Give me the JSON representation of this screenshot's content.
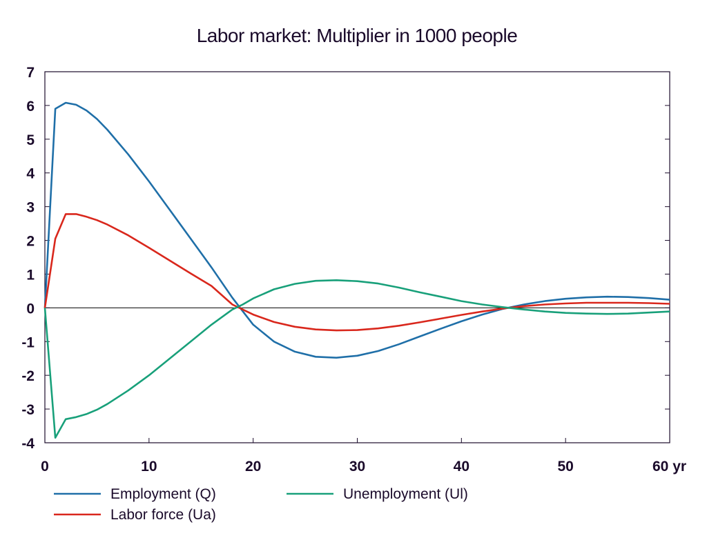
{
  "chart_data": {
    "type": "line",
    "title": "Labor market: Multiplier in 1000 people",
    "xlabel": "",
    "ylabel": "",
    "x_unit_label": "yr",
    "xlim": [
      0,
      60
    ],
    "ylim": [
      -4,
      7
    ],
    "x_ticks": [
      0,
      10,
      20,
      30,
      40,
      50,
      60
    ],
    "x_tick_labels": [
      "0",
      "10",
      "20",
      "30",
      "40",
      "50",
      "60 yr"
    ],
    "y_ticks": [
      -4,
      -3,
      -2,
      -1,
      0,
      1,
      2,
      3,
      4,
      5,
      6,
      7
    ],
    "y_tick_labels": [
      "-4",
      "-3",
      "-2",
      "-1",
      "0",
      "1",
      "2",
      "3",
      "4",
      "5",
      "6",
      "7"
    ],
    "grid": false,
    "zero_line": true,
    "legend_position": "bottom",
    "series": [
      {
        "name": "Employment (Q)",
        "color": "#1f6fa8",
        "points": [
          [
            0,
            0
          ],
          [
            1,
            5.9
          ],
          [
            2,
            6.08
          ],
          [
            3,
            6.02
          ],
          [
            4,
            5.85
          ],
          [
            5,
            5.6
          ],
          [
            6,
            5.28
          ],
          [
            8,
            4.55
          ],
          [
            10,
            3.75
          ],
          [
            12,
            2.9
          ],
          [
            14,
            2.05
          ],
          [
            16,
            1.2
          ],
          [
            18,
            0.3
          ],
          [
            19,
            -0.1
          ],
          [
            20,
            -0.5
          ],
          [
            22,
            -1.0
          ],
          [
            24,
            -1.3
          ],
          [
            26,
            -1.45
          ],
          [
            28,
            -1.48
          ],
          [
            30,
            -1.42
          ],
          [
            32,
            -1.28
          ],
          [
            34,
            -1.08
          ],
          [
            36,
            -0.85
          ],
          [
            38,
            -0.62
          ],
          [
            40,
            -0.4
          ],
          [
            42,
            -0.2
          ],
          [
            44,
            -0.03
          ],
          [
            46,
            0.1
          ],
          [
            48,
            0.2
          ],
          [
            50,
            0.27
          ],
          [
            52,
            0.31
          ],
          [
            54,
            0.33
          ],
          [
            56,
            0.32
          ],
          [
            58,
            0.29
          ],
          [
            60,
            0.24
          ]
        ]
      },
      {
        "name": "Labor force (Ua)",
        "color": "#d9271c",
        "points": [
          [
            0,
            0
          ],
          [
            1,
            2.05
          ],
          [
            2,
            2.78
          ],
          [
            3,
            2.78
          ],
          [
            4,
            2.7
          ],
          [
            5,
            2.6
          ],
          [
            6,
            2.47
          ],
          [
            8,
            2.15
          ],
          [
            10,
            1.78
          ],
          [
            12,
            1.4
          ],
          [
            14,
            1.02
          ],
          [
            16,
            0.65
          ],
          [
            18,
            0.1
          ],
          [
            19,
            -0.05
          ],
          [
            20,
            -0.2
          ],
          [
            22,
            -0.42
          ],
          [
            24,
            -0.56
          ],
          [
            26,
            -0.64
          ],
          [
            28,
            -0.67
          ],
          [
            30,
            -0.66
          ],
          [
            32,
            -0.61
          ],
          [
            34,
            -0.53
          ],
          [
            36,
            -0.43
          ],
          [
            38,
            -0.32
          ],
          [
            40,
            -0.21
          ],
          [
            42,
            -0.11
          ],
          [
            44,
            -0.02
          ],
          [
            46,
            0.05
          ],
          [
            48,
            0.1
          ],
          [
            50,
            0.13
          ],
          [
            52,
            0.15
          ],
          [
            54,
            0.15
          ],
          [
            56,
            0.15
          ],
          [
            58,
            0.14
          ],
          [
            60,
            0.12
          ]
        ]
      },
      {
        "name": "Unemployment (Ul)",
        "color": "#18a07a",
        "points": [
          [
            0,
            0
          ],
          [
            1,
            -3.85
          ],
          [
            2,
            -3.3
          ],
          [
            3,
            -3.24
          ],
          [
            4,
            -3.15
          ],
          [
            5,
            -3.02
          ],
          [
            6,
            -2.85
          ],
          [
            8,
            -2.45
          ],
          [
            10,
            -2.0
          ],
          [
            12,
            -1.5
          ],
          [
            14,
            -1.0
          ],
          [
            16,
            -0.5
          ],
          [
            18,
            -0.05
          ],
          [
            19,
            0.1
          ],
          [
            20,
            0.28
          ],
          [
            22,
            0.55
          ],
          [
            24,
            0.71
          ],
          [
            26,
            0.8
          ],
          [
            28,
            0.82
          ],
          [
            30,
            0.79
          ],
          [
            32,
            0.72
          ],
          [
            34,
            0.6
          ],
          [
            36,
            0.46
          ],
          [
            38,
            0.33
          ],
          [
            40,
            0.2
          ],
          [
            42,
            0.1
          ],
          [
            44,
            0.02
          ],
          [
            46,
            -0.05
          ],
          [
            48,
            -0.11
          ],
          [
            50,
            -0.15
          ],
          [
            52,
            -0.17
          ],
          [
            54,
            -0.18
          ],
          [
            56,
            -0.17
          ],
          [
            58,
            -0.14
          ],
          [
            60,
            -0.11
          ]
        ]
      }
    ]
  }
}
